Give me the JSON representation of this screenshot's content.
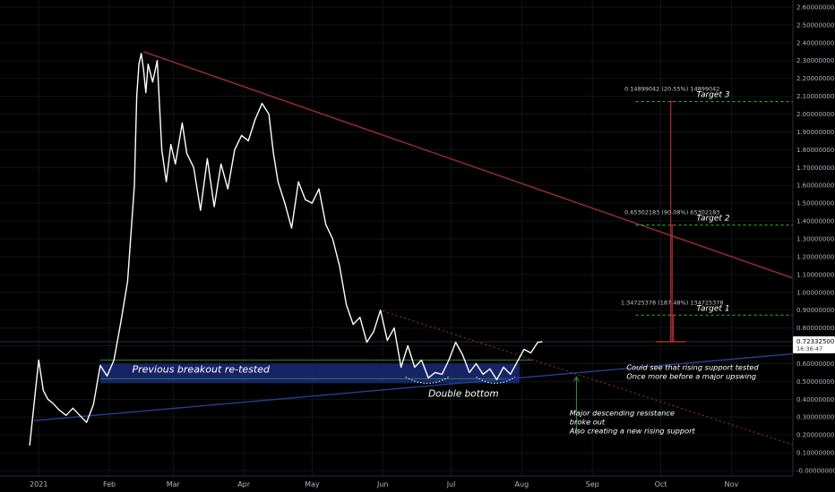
{
  "chart_data": {
    "type": "line",
    "series": [
      {
        "x": [
          "2020-12-28",
          "2021-01-01",
          "2021-01-03",
          "2021-01-05",
          "2021-01-07",
          "2021-01-10",
          "2021-01-13",
          "2021-01-16",
          "2021-01-19",
          "2021-01-22",
          "2021-01-25",
          "2021-01-28",
          "2021-01-31",
          "2021-02-03",
          "2021-02-06",
          "2021-02-09",
          "2021-02-12",
          "2021-02-13",
          "2021-02-14",
          "2021-02-15",
          "2021-02-16",
          "2021-02-17",
          "2021-02-18",
          "2021-02-20",
          "2021-02-22",
          "2021-02-24",
          "2021-02-26",
          "2021-02-28",
          "2021-03-02",
          "2021-03-05",
          "2021-03-07",
          "2021-03-10",
          "2021-03-13",
          "2021-03-16",
          "2021-03-19",
          "2021-03-22",
          "2021-03-25",
          "2021-03-28",
          "2021-03-31",
          "2021-04-03",
          "2021-04-06",
          "2021-04-09",
          "2021-04-12",
          "2021-04-14",
          "2021-04-16",
          "2021-04-19",
          "2021-04-22",
          "2021-04-25",
          "2021-04-28",
          "2021-05-01",
          "2021-05-04",
          "2021-05-07",
          "2021-05-10",
          "2021-05-13",
          "2021-05-16",
          "2021-05-19",
          "2021-05-22",
          "2021-05-25",
          "2021-05-28",
          "2021-05-31",
          "2021-06-03",
          "2021-06-06",
          "2021-06-09",
          "2021-06-12",
          "2021-06-15",
          "2021-06-18",
          "2021-06-21",
          "2021-06-24",
          "2021-06-27",
          "2021-06-30",
          "2021-07-03",
          "2021-07-06",
          "2021-07-09",
          "2021-07-12",
          "2021-07-15",
          "2021-07-18",
          "2021-07-21",
          "2021-07-24",
          "2021-07-27",
          "2021-07-30",
          "2021-08-02",
          "2021-08-05",
          "2021-08-08",
          "2021-08-10"
        ],
        "y": [
          0.14,
          0.62,
          0.45,
          0.4,
          0.38,
          0.34,
          0.31,
          0.35,
          0.31,
          0.27,
          0.37,
          0.59,
          0.53,
          0.62,
          0.83,
          1.06,
          1.6,
          2.1,
          2.28,
          2.34,
          2.25,
          2.12,
          2.28,
          2.18,
          2.3,
          1.8,
          1.62,
          1.83,
          1.72,
          1.95,
          1.78,
          1.7,
          1.46,
          1.75,
          1.48,
          1.72,
          1.58,
          1.8,
          1.88,
          1.85,
          1.97,
          2.06,
          2.0,
          1.78,
          1.62,
          1.5,
          1.36,
          1.62,
          1.52,
          1.5,
          1.58,
          1.38,
          1.3,
          1.15,
          0.93,
          0.82,
          0.86,
          0.72,
          0.78,
          0.9,
          0.73,
          0.8,
          0.58,
          0.7,
          0.58,
          0.62,
          0.52,
          0.55,
          0.54,
          0.62,
          0.72,
          0.65,
          0.55,
          0.6,
          0.54,
          0.57,
          0.51,
          0.58,
          0.54,
          0.61,
          0.68,
          0.66,
          0.72,
          0.723
        ]
      }
    ],
    "yticks": [
      "2.60000000",
      "2.50000000",
      "2.40000000",
      "2.30000000",
      "2.20000000",
      "2.10000000",
      "2.00000000",
      "1.90000000",
      "1.80000000",
      "1.70000000",
      "1.60000000",
      "1.50000000",
      "1.40000000",
      "1.30000000",
      "1.20000000",
      "1.10000000",
      "1.00000000",
      "0.90000000",
      "0.80000000",
      "0.70000000",
      "0.60000000",
      "0.50000000",
      "0.40000000",
      "0.30000000",
      "0.20000000",
      "0.10000000",
      "-0.00000000"
    ],
    "xticks": [
      "2021",
      "Feb",
      "Mar",
      "Apr",
      "May",
      "Jun",
      "Jul",
      "Aug",
      "Sep",
      "Oct",
      "Nov"
    ],
    "ylim": [
      -0.03,
      2.64
    ],
    "xlim": [
      "2020-12-15",
      "2021-11-28"
    ],
    "current_price": "0.72332500",
    "current_time": "16:36:47",
    "measure_labels": [
      "1.34725378 (187.48%) 134725378",
      "0.65302183 (90.08%) 65302183",
      "0.14899042 (20.55%) 14899042"
    ],
    "targets": [
      {
        "label": "Target 3",
        "value": 2.07
      },
      {
        "label": "Target 2",
        "value": 1.377
      },
      {
        "label": "Target 1",
        "value": 0.872
      }
    ],
    "annotations": {
      "breakout": "Previous breakout re-tested",
      "double_bottom": "Double bottom",
      "rising_support": [
        "Could see that rising support tested",
        "Once more before a major upswing"
      ],
      "descending": [
        "Major descending resistance",
        "broke out",
        "Also creating a new rising support"
      ]
    },
    "colors": {
      "price": "#ffffff",
      "resistance": "#8b2a2e",
      "support": "#283e94",
      "target_line": "#22cc22",
      "zone": "#1a2a78",
      "measure": "#c0393f"
    }
  }
}
